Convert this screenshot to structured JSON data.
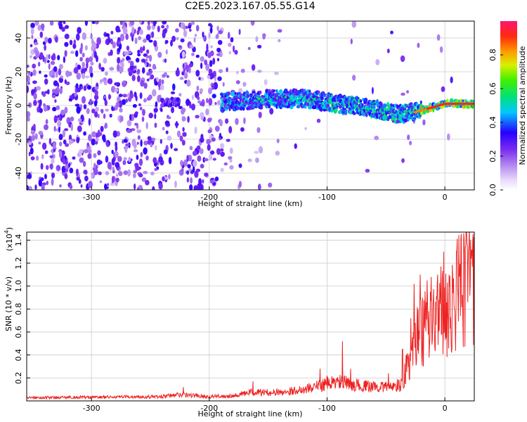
{
  "title": "C2E5.2023.167.05.55.G14",
  "chart_data": [
    {
      "type": "heatmap",
      "xlabel": "Height of straight line (km)",
      "ylabel": "Frequency (Hz)",
      "xlim": [
        -355,
        25
      ],
      "ylim": [
        -50,
        50
      ],
      "xticks": [
        -300,
        -200,
        -100,
        0
      ],
      "yticks": [
        -40,
        -20,
        0,
        20,
        40
      ],
      "colorbar": {
        "label": "Normalized spectral amplitude",
        "range": [
          0,
          1
        ],
        "ticks": [
          0.0,
          0.2,
          0.4,
          0.6,
          0.8
        ],
        "tick_labels": [
          "0.0",
          "0.2",
          "0.4",
          "0.6",
          "0.8"
        ],
        "colormap": [
          "#ffffff",
          "#c59cf0",
          "#8a2be2",
          "#2a00ff",
          "#00d8ff",
          "#00e05a",
          "#c8f000",
          "#ff9a00",
          "#ff1a1a",
          "#ff1470"
        ]
      },
      "signal_track": {
        "description_points": [
          [
            -185,
            2
          ],
          [
            -150,
            4
          ],
          [
            -120,
            4
          ],
          [
            -100,
            2
          ],
          [
            -80,
            0
          ],
          [
            -60,
            -2
          ],
          [
            -40,
            -5
          ],
          [
            -25,
            -4
          ],
          [
            -15,
            -2
          ],
          [
            -5,
            0
          ],
          [
            0,
            1
          ],
          [
            10,
            1
          ],
          [
            25,
            1
          ]
        ]
      },
      "grid": true
    },
    {
      "type": "line",
      "xlabel": "Height of straight line (km)",
      "ylabel": "SNR (10 * v/v)",
      "yscale_label": "(x10",
      "yscale_exp": "4",
      "yscale_close": ")",
      "xlim": [
        -355,
        25
      ],
      "ylim": [
        0,
        1.47
      ],
      "xticks": [
        -300,
        -200,
        -100,
        0
      ],
      "yticks": [
        0.2,
        0.4,
        0.6,
        0.8,
        1.0,
        1.2,
        1.4
      ],
      "ytick_labels": [
        "0.2",
        "0.4",
        "0.6",
        "0.8",
        "1.0",
        "1.2",
        "1.4"
      ],
      "series": [
        {
          "color": "#ee2222",
          "envelope": [
            [
              -355,
              0.03
            ],
            [
              -240,
              0.04
            ],
            [
              -225,
              0.06
            ],
            [
              -200,
              0.04
            ],
            [
              -180,
              0.05
            ],
            [
              -165,
              0.08
            ],
            [
              -140,
              0.08
            ],
            [
              -120,
              0.11
            ],
            [
              -100,
              0.16
            ],
            [
              -90,
              0.18
            ],
            [
              -70,
              0.14
            ],
            [
              -50,
              0.13
            ],
            [
              -40,
              0.15
            ],
            [
              -35,
              0.25
            ],
            [
              -30,
              0.45
            ],
            [
              -25,
              0.65
            ],
            [
              -20,
              0.78
            ],
            [
              -15,
              0.88
            ],
            [
              -10,
              0.95
            ],
            [
              -5,
              1.0
            ],
            [
              0,
              1.05
            ],
            [
              5,
              1.1
            ],
            [
              10,
              1.2
            ],
            [
              15,
              1.25
            ],
            [
              20,
              1.3
            ],
            [
              25,
              1.3
            ]
          ],
          "spikes": [
            [
              -222,
              0.12
            ],
            [
              -163,
              0.17
            ],
            [
              -106,
              0.28
            ],
            [
              -100,
              0.22
            ],
            [
              -87,
              0.52
            ],
            [
              -80,
              0.28
            ],
            [
              -48,
              0.24
            ],
            [
              -36,
              0.45
            ],
            [
              -29,
              0.72
            ],
            [
              -26,
              1.02
            ],
            [
              -21,
              1.1
            ],
            [
              -15,
              1.05
            ],
            [
              -6,
              1.1
            ],
            [
              -1,
              1.3
            ],
            [
              6,
              0.45
            ],
            [
              10,
              1.3
            ],
            [
              16,
              1.46
            ],
            [
              22,
              1.4
            ]
          ]
        }
      ],
      "grid": true
    }
  ]
}
